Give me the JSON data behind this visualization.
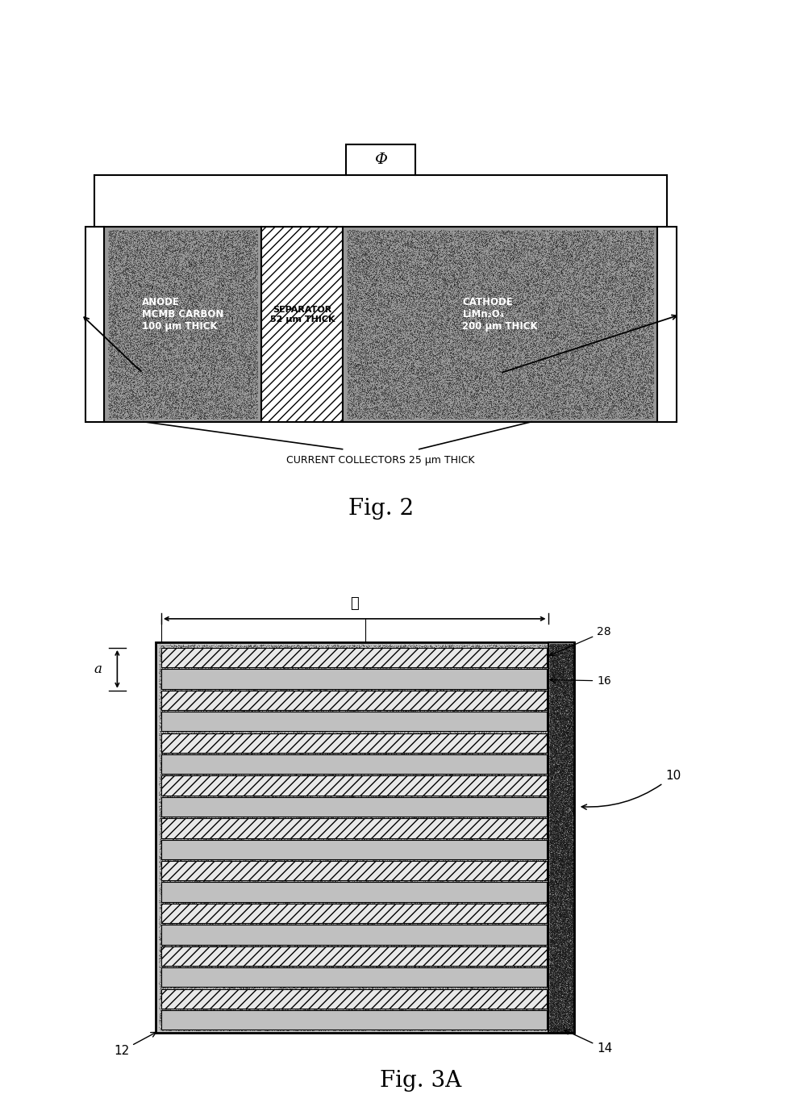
{
  "bg_color": "#ffffff",
  "fig2": {
    "title": "Fig. 2",
    "phi_label": "Φ",
    "anode_label": "ANODE\nMCMB CARBON\n100 μm THICK",
    "separator_label": "SEPARATOR\n52 μm THICK",
    "cathode_label": "CATHODE\nLiMn₂O₄\n200 μm THICK",
    "current_collector_label": "CURRENT COLLECTORS 25 μm THICK"
  },
  "fig3a": {
    "title": "Fig. 3A",
    "label_a": "a",
    "label_l": "ℓ",
    "label_10": "10",
    "label_12": "12",
    "label_14": "14",
    "label_16": "16",
    "label_28": "28",
    "n_layers": 9
  }
}
